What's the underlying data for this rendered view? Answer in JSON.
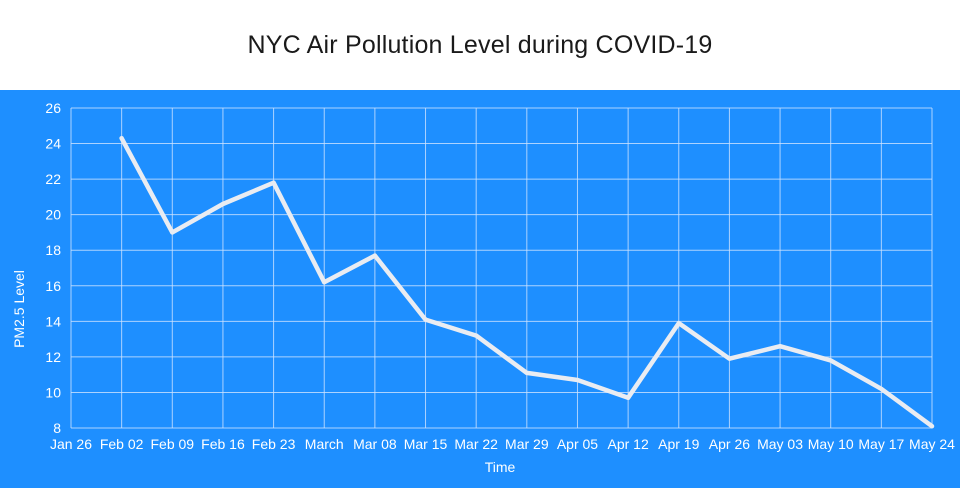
{
  "chart_data": {
    "type": "line",
    "title": "NYC Air Pollution Level during COVID-19",
    "xlabel": "Time",
    "ylabel": "PM2.5 Level",
    "categories": [
      "Jan 26",
      "Feb 02",
      "Feb 09",
      "Feb 16",
      "Feb 23",
      "March",
      "Mar 08",
      "Mar 15",
      "Mar 22",
      "Mar 29",
      "Apr 05",
      "Apr 12",
      "Apr 19",
      "Apr 26",
      "May 03",
      "May 10",
      "May 17",
      "May 24"
    ],
    "series": [
      {
        "values": [
          null,
          24.3,
          19.0,
          20.6,
          21.8,
          16.2,
          17.7,
          14.1,
          13.2,
          11.1,
          10.7,
          9.7,
          13.9,
          11.9,
          12.6,
          11.8,
          10.2,
          8.1
        ]
      }
    ],
    "ylim": [
      8,
      26
    ],
    "yticks": [
      8,
      10,
      12,
      14,
      16,
      18,
      20,
      22,
      24,
      26
    ],
    "grid": true,
    "colors": {
      "background": "#1e8fff",
      "line": "#e9ecf2",
      "grid": "#cfe3ff",
      "text": "#ffffff"
    }
  }
}
